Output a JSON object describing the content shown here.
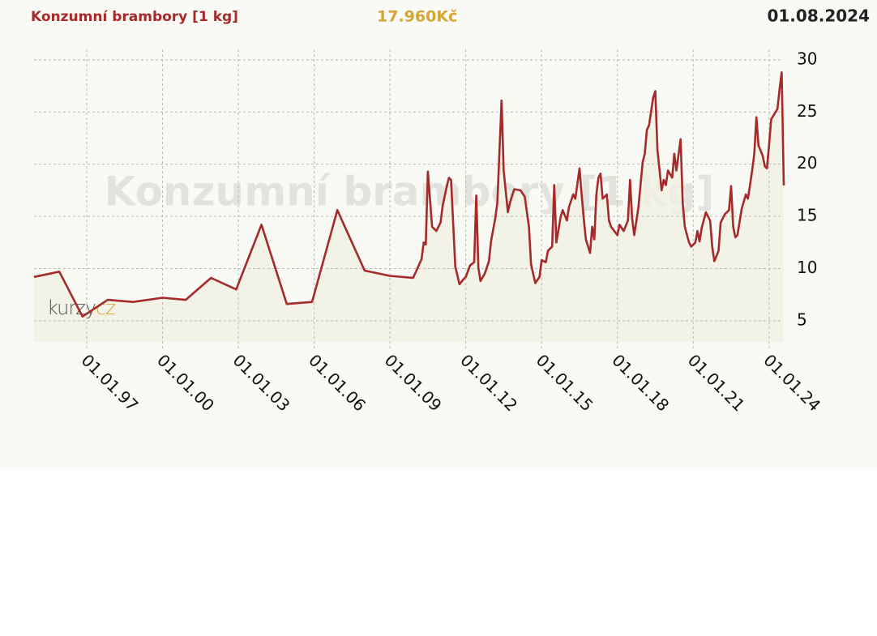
{
  "chart_data": {
    "type": "line",
    "title": "Konzumní brambory [1 kg]",
    "current_price": "17.960Kč",
    "date": "01.08.2024",
    "watermark": "Konzumní brambory [1 kg]",
    "logo": [
      "kurzy",
      "cz"
    ],
    "color": "#a52a2a",
    "area_color": "#f0f0e4",
    "grid": true,
    "xlim": [
      "1994-12",
      "2024-08"
    ],
    "ylim": [
      3,
      31
    ],
    "yticks": [
      5,
      10,
      15,
      20,
      25,
      30
    ],
    "xticks": [
      {
        "value": "1997-01",
        "label": "01.01.97"
      },
      {
        "value": "2000-01",
        "label": "01.01.00"
      },
      {
        "value": "2003-01",
        "label": "01.01.03"
      },
      {
        "value": "2006-01",
        "label": "01.01.06"
      },
      {
        "value": "2009-01",
        "label": "01.01.09"
      },
      {
        "value": "2012-01",
        "label": "01.01.12"
      },
      {
        "value": "2015-01",
        "label": "01.01.15"
      },
      {
        "value": "2018-01",
        "label": "01.01.18"
      },
      {
        "value": "2021-01",
        "label": "01.01.21"
      },
      {
        "value": "2024-01",
        "label": "01.01.24"
      }
    ],
    "x": [
      "1994-12",
      "1995-12",
      "1996-11",
      "1997-11",
      "1998-11",
      "2000-01",
      "2000-12",
      "2001-12",
      "2002-12",
      "2003-12",
      "2004-12",
      "2005-12",
      "2006-12",
      "2008-01",
      "2009-01",
      "2009-12",
      "2010-04",
      "2010-05",
      "2010-06",
      "2010-07",
      "2010-09",
      "2010-11",
      "2011-01",
      "2011-02",
      "2011-04",
      "2011-05",
      "2011-06",
      "2011-08",
      "2011-10",
      "2011-12",
      "2012-01",
      "2012-03",
      "2012-05",
      "2012-06",
      "2012-07",
      "2012-08",
      "2012-10",
      "2012-12",
      "2013-01",
      "2013-03",
      "2013-04",
      "2013-06",
      "2013-07",
      "2013-09",
      "2013-10",
      "2013-12",
      "2014-03",
      "2014-05",
      "2014-07",
      "2014-08",
      "2014-10",
      "2014-12",
      "2015-01",
      "2015-03",
      "2015-04",
      "2015-06",
      "2015-07",
      "2015-08",
      "2015-10",
      "2015-11",
      "2016-01",
      "2016-02",
      "2016-04",
      "2016-05",
      "2016-07",
      "2016-08",
      "2016-09",
      "2016-10",
      "2016-12",
      "2017-01",
      "2017-02",
      "2017-03",
      "2017-04",
      "2017-05",
      "2017-06",
      "2017-08",
      "2017-09",
      "2017-10",
      "2018-01",
      "2018-02",
      "2018-04",
      "2018-06",
      "2018-07",
      "2018-08",
      "2018-09",
      "2018-11",
      "2019-01",
      "2019-02",
      "2019-03",
      "2019-04",
      "2019-06",
      "2019-07",
      "2019-08",
      "2019-10",
      "2019-11",
      "2019-12",
      "2020-01",
      "2020-03",
      "2020-04",
      "2020-05",
      "2020-07",
      "2020-08",
      "2020-09",
      "2020-11",
      "2020-12",
      "2021-02",
      "2021-03",
      "2021-04",
      "2021-05",
      "2021-07",
      "2021-09",
      "2021-10",
      "2021-11",
      "2022-01",
      "2022-02",
      "2022-04",
      "2022-06",
      "2022-07",
      "2022-08",
      "2022-09",
      "2022-10",
      "2022-12",
      "2023-02",
      "2023-03",
      "2023-05",
      "2023-06",
      "2023-07",
      "2023-08",
      "2023-10",
      "2023-11",
      "2023-12",
      "2024-01",
      "2024-02",
      "2024-05",
      "2024-06",
      "2024-07",
      "2024-08"
    ],
    "values": [
      9.2,
      9.7,
      5.4,
      7.0,
      6.8,
      7.2,
      7.0,
      9.1,
      8.0,
      14.2,
      6.6,
      6.8,
      15.6,
      9.8,
      9.3,
      9.1,
      10.9,
      12.5,
      12.3,
      19.3,
      14.0,
      13.6,
      14.4,
      16.0,
      17.9,
      18.7,
      18.5,
      10.2,
      8.5,
      9.0,
      9.2,
      10.3,
      10.6,
      17.0,
      10.1,
      8.8,
      9.5,
      10.7,
      12.6,
      14.8,
      16.3,
      26.1,
      19.4,
      15.4,
      16.3,
      17.6,
      17.5,
      16.9,
      14.0,
      10.4,
      8.6,
      9.2,
      10.8,
      10.6,
      11.7,
      12.1,
      18.0,
      12.5,
      14.9,
      15.6,
      14.6,
      15.9,
      17.1,
      16.7,
      19.6,
      17.1,
      14.8,
      12.8,
      11.5,
      14.0,
      12.8,
      17.1,
      18.7,
      19.1,
      16.7,
      17.1,
      14.6,
      14.0,
      13.2,
      14.2,
      13.6,
      14.6,
      18.5,
      14.8,
      13.2,
      15.9,
      20.2,
      21.0,
      23.3,
      23.7,
      26.4,
      27.0,
      21.4,
      17.5,
      18.5,
      18.0,
      19.4,
      18.7,
      21.0,
      19.4,
      22.4,
      16.3,
      14.0,
      12.5,
      12.1,
      12.5,
      13.6,
      12.6,
      13.9,
      15.4,
      14.6,
      12.1,
      10.7,
      11.7,
      14.4,
      15.2,
      15.6,
      17.9,
      14.0,
      13.0,
      13.2,
      15.7,
      17.1,
      16.7,
      19.4,
      21.0,
      24.5,
      21.8,
      20.8,
      19.8,
      19.6,
      21.8,
      24.3,
      25.3,
      27.2,
      28.8,
      17.96
    ]
  }
}
